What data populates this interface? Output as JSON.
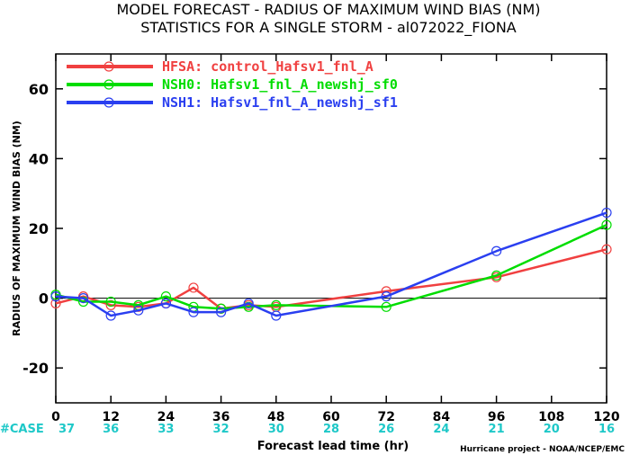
{
  "chart_data": {
    "type": "line",
    "title": "MODEL FORECAST - RADIUS OF MAXIMUM WIND BIAS (NM)",
    "subtitle": "STATISTICS FOR A SINGLE STORM - al072022_FIONA",
    "xlabel": "Forecast lead time (hr)",
    "ylabel": "RADIUS OF MAXIMUM WIND BIAS (NM)",
    "xlim": [
      0,
      120
    ],
    "ylim": [
      -30,
      70
    ],
    "xticks": [
      0,
      12,
      24,
      36,
      48,
      60,
      72,
      84,
      96,
      108,
      120
    ],
    "yticks": [
      -20,
      0,
      20,
      40,
      60
    ],
    "zero_line": 0,
    "legend_placement": "top-left",
    "case_label": "#CASE",
    "case_counts": [
      37,
      36,
      33,
      32,
      30,
      28,
      26,
      24,
      21,
      20,
      16
    ],
    "credit": "Hurricane project - NOAA/NCEP/EMC",
    "series": [
      {
        "name": "HFSA: control_Hafsv1_fnl_A",
        "color": "#f04040",
        "x": [
          0,
          6,
          12,
          18,
          24,
          30,
          36,
          42,
          48,
          72,
          96,
          120
        ],
        "y": [
          -1.5,
          0.5,
          -2,
          -2.5,
          -1.5,
          3,
          -3,
          -2,
          -2.5,
          2,
          6,
          14
        ]
      },
      {
        "name": "NSH0: Hafsv1_fnl_A_newshj_sf0",
        "color": "#00dd00",
        "x": [
          0,
          6,
          12,
          18,
          24,
          30,
          36,
          42,
          48,
          72,
          96,
          120
        ],
        "y": [
          1,
          -1,
          -1,
          -2,
          0.5,
          -2.5,
          -3,
          -2.5,
          -2,
          -2.5,
          6.5,
          21
        ]
      },
      {
        "name": "NSH1: Hafsv1_fnl_A_newshj_sf1",
        "color": "#2a3ff0",
        "x": [
          0,
          6,
          12,
          18,
          24,
          30,
          36,
          42,
          48,
          72,
          96,
          120
        ],
        "y": [
          0.5,
          0,
          -5,
          -3.5,
          -1.5,
          -4,
          -4,
          -1.5,
          -5,
          0.5,
          13.5,
          24.5
        ]
      }
    ]
  }
}
